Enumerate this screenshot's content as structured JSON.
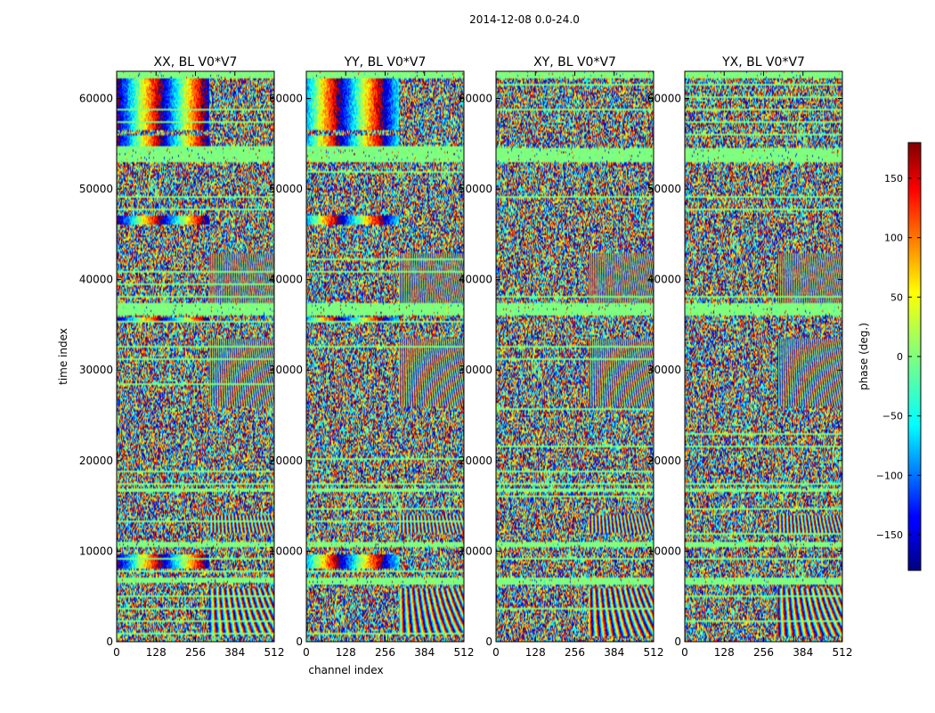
{
  "figure": {
    "suptitle": "2014-12-08 0.0-24.0"
  },
  "chart_data": [
    {
      "type": "heatmap",
      "title": "XX, BL V0*V7",
      "xlabel": "",
      "ylabel": "time index",
      "xlim": [
        0,
        512
      ],
      "ylim": [
        0,
        63000
      ],
      "xticks": [
        0,
        128,
        256,
        384,
        512
      ],
      "yticks": [
        0,
        10000,
        20000,
        30000,
        40000,
        50000,
        60000
      ],
      "value_range": [
        -180,
        180
      ]
    },
    {
      "type": "heatmap",
      "title": "YY, BL V0*V7",
      "xlabel": "channel index",
      "ylabel": "",
      "xlim": [
        0,
        512
      ],
      "ylim": [
        0,
        63000
      ],
      "xticks": [
        0,
        128,
        256,
        384,
        512
      ],
      "yticks": [
        0,
        10000,
        20000,
        30000,
        40000,
        50000,
        60000
      ],
      "value_range": [
        -180,
        180
      ]
    },
    {
      "type": "heatmap",
      "title": "XY, BL V0*V7",
      "xlabel": "",
      "ylabel": "",
      "xlim": [
        0,
        512
      ],
      "ylim": [
        0,
        63000
      ],
      "xticks": [
        0,
        128,
        256,
        384,
        512
      ],
      "yticks": [
        0,
        10000,
        20000,
        30000,
        40000,
        50000,
        60000
      ],
      "value_range": [
        -180,
        180
      ]
    },
    {
      "type": "heatmap",
      "title": "YX, BL V0*V7",
      "xlabel": "",
      "ylabel": "",
      "xlim": [
        0,
        512
      ],
      "ylim": [
        0,
        63000
      ],
      "xticks": [
        0,
        128,
        256,
        384,
        512
      ],
      "yticks": [
        0,
        10000,
        20000,
        30000,
        40000,
        50000,
        60000
      ],
      "value_range": [
        -180,
        180
      ]
    }
  ],
  "colorbar": {
    "label": "phase (deg.)",
    "range": [
      -180,
      180
    ],
    "ticks": [
      -150,
      -100,
      -50,
      0,
      50,
      100,
      150
    ],
    "tick_labels": [
      "−150",
      "−100",
      "−50",
      "0",
      "50",
      "100",
      "150"
    ],
    "colormap": "jet",
    "colors": [
      "#00007f",
      "#0000ff",
      "#007fff",
      "#00ffff",
      "#7fff7f",
      "#ffff00",
      "#ff7f00",
      "#ff0000",
      "#7f0000"
    ]
  }
}
